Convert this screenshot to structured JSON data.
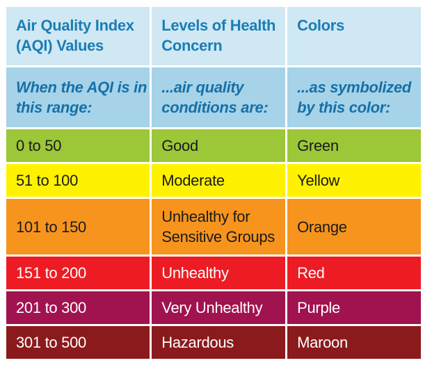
{
  "header": {
    "col1": "Air Quality Index (AQI) Values",
    "col2": "Levels of Health Concern",
    "col3": "Colors"
  },
  "subheader": {
    "col1": "When the AQI is in this range:",
    "col2": "...air quality conditions are:",
    "col3": "...as symbolized by this color:"
  },
  "rows": [
    {
      "range": "0 to 50",
      "level": "Good",
      "color": "Green",
      "swatch": "#9bc739"
    },
    {
      "range": "51 to 100",
      "level": "Moderate",
      "color": "Yellow",
      "swatch": "#fff200"
    },
    {
      "range": "101 to 150",
      "level": "Unhealthy for Sensitive Groups",
      "color": "Orange",
      "swatch": "#f7941e"
    },
    {
      "range": "151 to 200",
      "level": "Unhealthy",
      "color": "Red",
      "swatch": "#ed1c24"
    },
    {
      "range": "201 to 300",
      "level": "Very Unhealthy",
      "color": "Purple",
      "swatch": "#a0134f"
    },
    {
      "range": "301 to 500",
      "level": "Hazardous",
      "color": "Maroon",
      "swatch": "#8b1a1d"
    }
  ],
  "colors": {
    "header_bg": "#cfe8f3",
    "subheader_bg": "#a6d3e8",
    "header_text": "#1b7db5"
  }
}
